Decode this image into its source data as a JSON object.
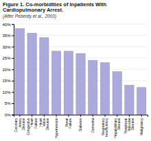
{
  "chart_data": {
    "type": "bar",
    "title": "Figure 1. Co-morbidities of Inpatients With Cardiopulmonary Arrest.",
    "subtitle": "(After Peberdy et al., 2003)",
    "categories": [
      "Coronary\nArtery\nDisease",
      "Congestive\nHeart\nFailure",
      "Heart\nValve\nDisease",
      "Hypertension",
      "Renal\nFailure",
      "Diabetes",
      "Dementia",
      "Respiratory\nInsufficiency",
      "Hepatobiliary\nDisease",
      "Peripheral\nVascular\nDisease",
      "Malignancy"
    ],
    "values": [
      38,
      36,
      34,
      28,
      28,
      27,
      24,
      23,
      19,
      13,
      12
    ],
    "color": "#aaaadd",
    "ylim": [
      0,
      40
    ],
    "yticks": [
      {
        "value": 0,
        "label": "0%"
      },
      {
        "value": 5,
        "label": "5%"
      },
      {
        "value": 10,
        "label": "10%"
      },
      {
        "value": 15,
        "label": "15%"
      },
      {
        "value": 20,
        "label": "20%"
      },
      {
        "value": 25,
        "label": "25%"
      },
      {
        "value": 30,
        "label": "30%"
      },
      {
        "value": 35,
        "label": "35%"
      },
      {
        "value": 40,
        "label": "40%"
      }
    ],
    "grid": true
  }
}
